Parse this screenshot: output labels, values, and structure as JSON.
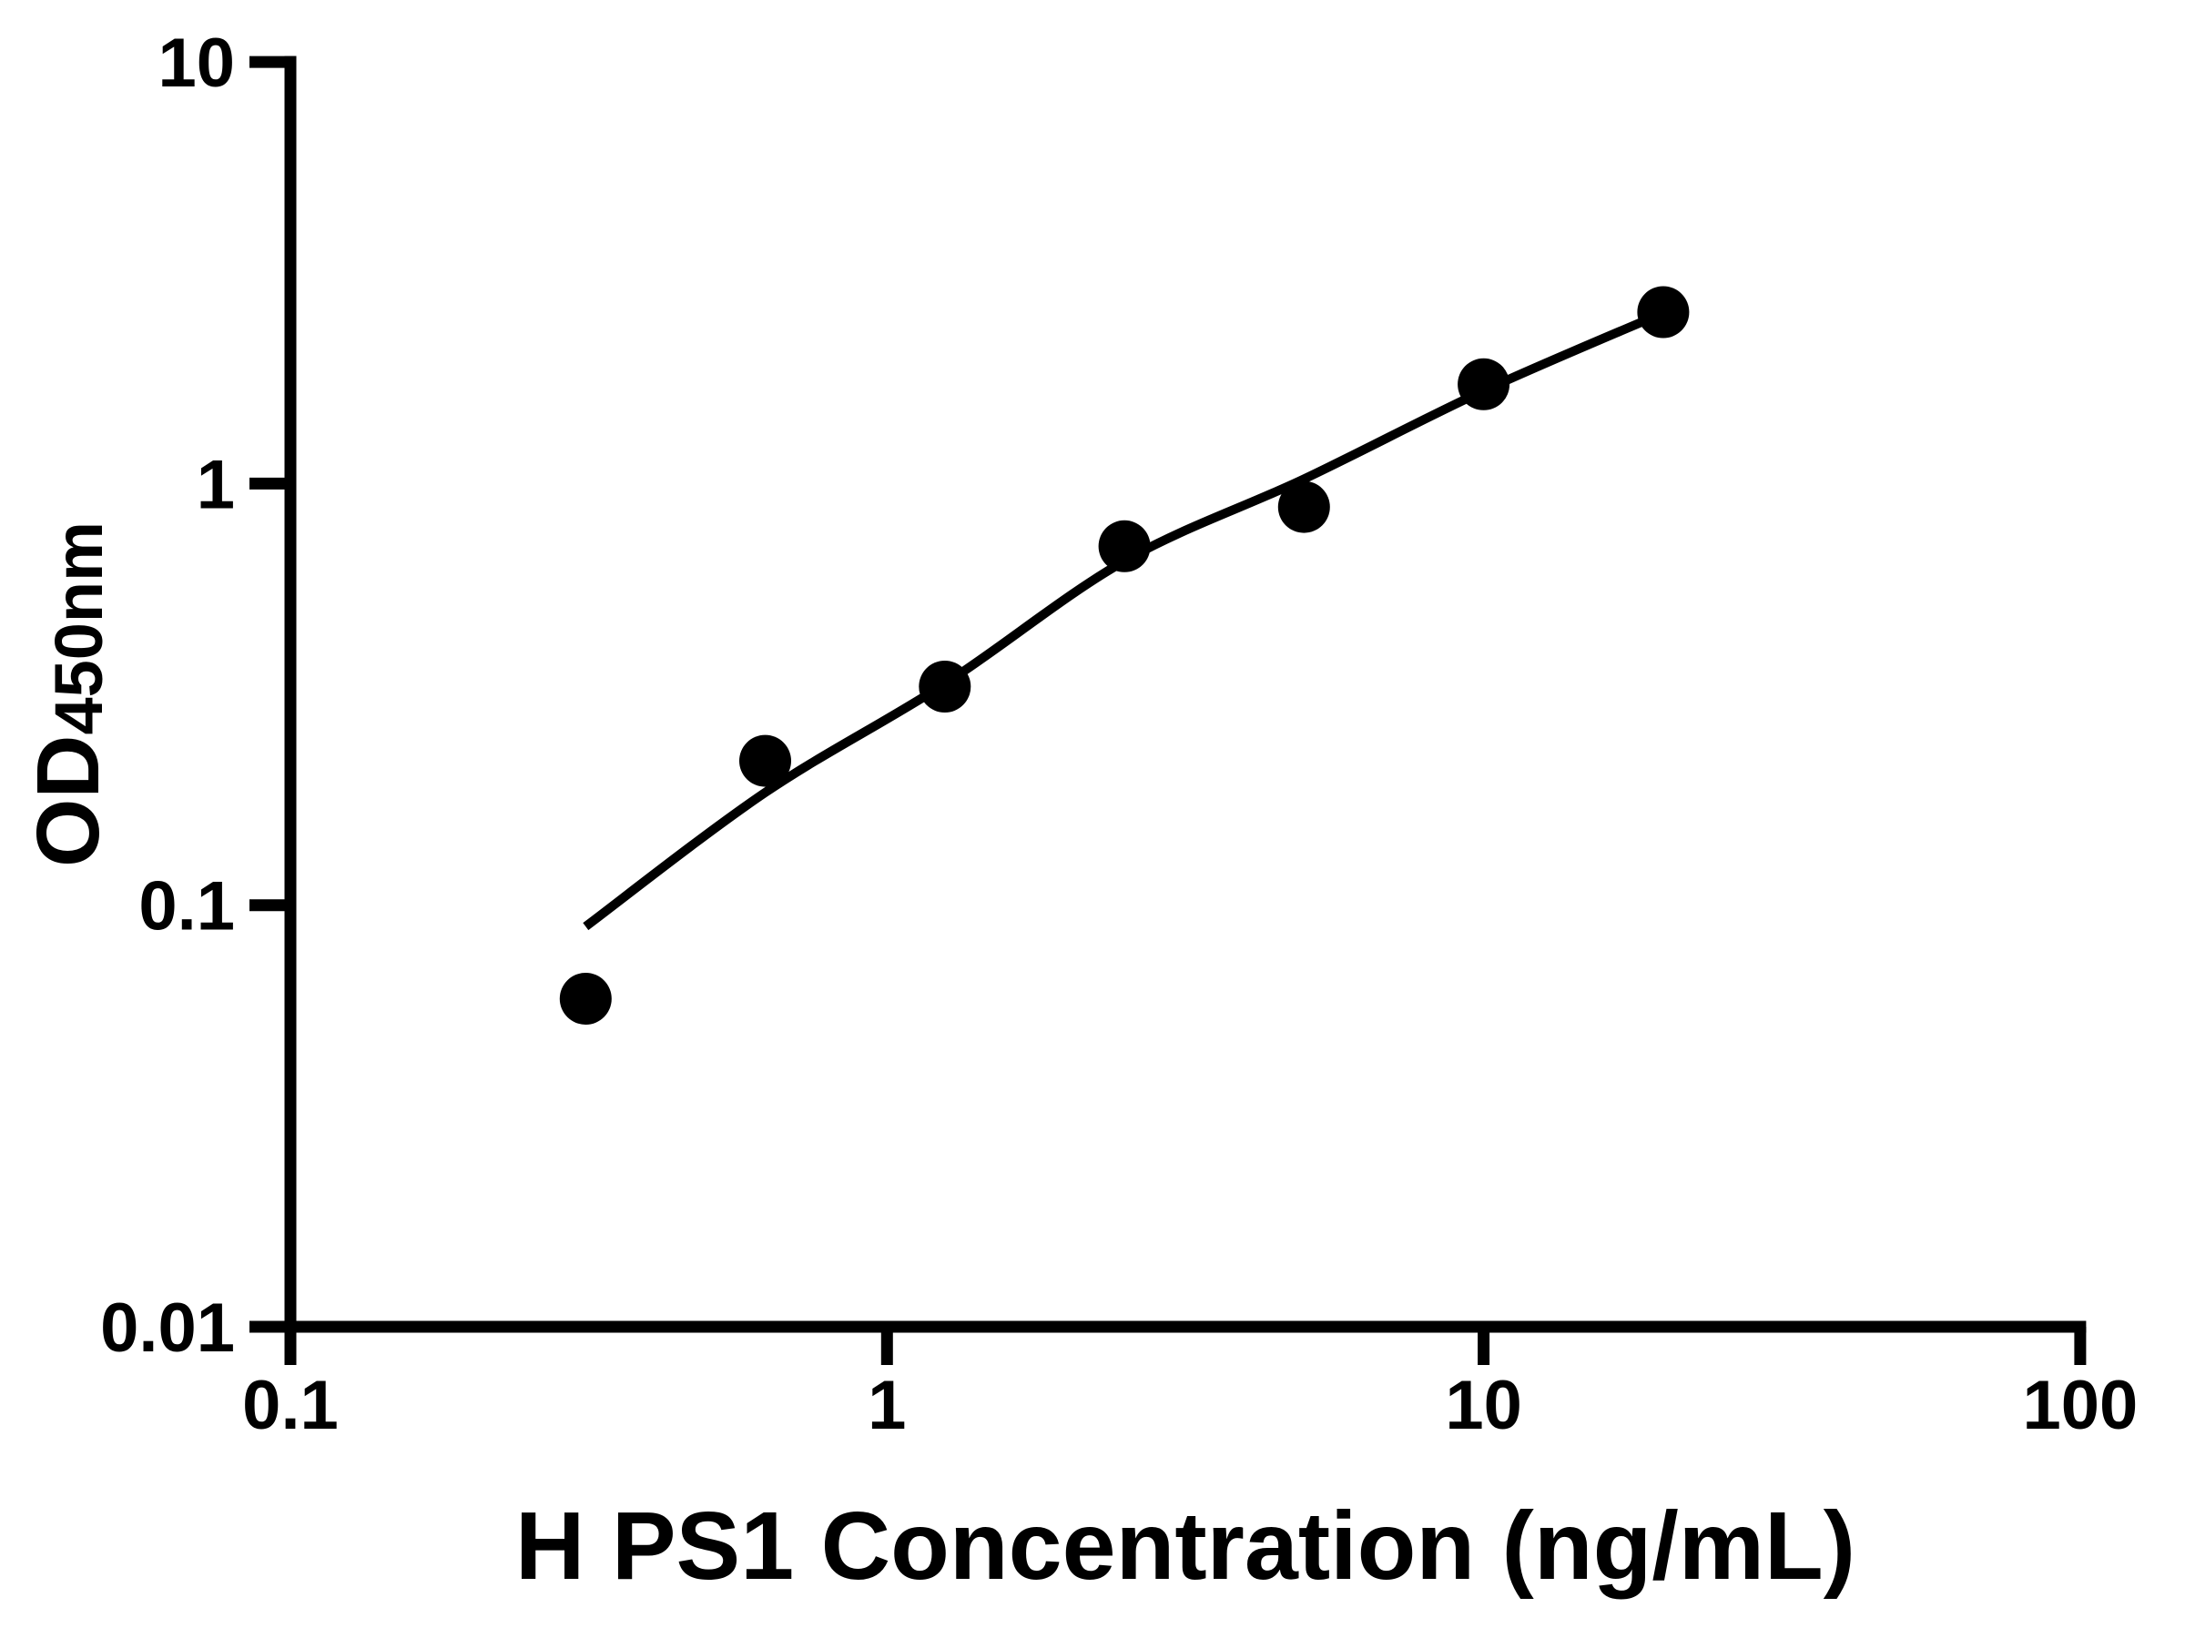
{
  "chart_data": {
    "type": "scatter",
    "title": "",
    "xlabel": "H PS1 Concentration (ng/mL)",
    "ylabel": "OD450nm",
    "ylabel_parts": {
      "main": "OD",
      "sub": "450nm"
    },
    "x_scale": "log",
    "y_scale": "log",
    "xlim": [
      0.1,
      100
    ],
    "ylim": [
      0.01,
      10
    ],
    "grid": false,
    "legend": false,
    "background_color": "#ffffff",
    "axis_color": "#000000",
    "text_color": "#000000",
    "x_ticks": [
      {
        "value": 0.1,
        "label": "0.1"
      },
      {
        "value": 1,
        "label": "1"
      },
      {
        "value": 10,
        "label": "10"
      },
      {
        "value": 100,
        "label": "100"
      }
    ],
    "y_ticks": [
      {
        "value": 0.01,
        "label": "0.01"
      },
      {
        "value": 0.1,
        "label": "0.1"
      },
      {
        "value": 1,
        "label": "1"
      },
      {
        "value": 10,
        "label": "10"
      }
    ],
    "series": [
      {
        "name": "standard-points",
        "type": "scatter",
        "marker": "circle",
        "color": "#000000",
        "points": [
          {
            "x": 0.3125,
            "y": 0.06
          },
          {
            "x": 0.625,
            "y": 0.22
          },
          {
            "x": 1.25,
            "y": 0.33
          },
          {
            "x": 2.5,
            "y": 0.71
          },
          {
            "x": 5,
            "y": 0.88
          },
          {
            "x": 10,
            "y": 1.72
          },
          {
            "x": 20,
            "y": 2.55
          }
        ]
      },
      {
        "name": "fit-curve",
        "type": "line",
        "color": "#000000",
        "points": [
          {
            "x": 0.3125,
            "y": 0.089
          },
          {
            "x": 0.625,
            "y": 0.185
          },
          {
            "x": 1.25,
            "y": 0.335
          },
          {
            "x": 2.5,
            "y": 0.655
          },
          {
            "x": 5,
            "y": 1.025
          },
          {
            "x": 10,
            "y": 1.66
          },
          {
            "x": 20,
            "y": 2.54
          }
        ]
      }
    ]
  }
}
